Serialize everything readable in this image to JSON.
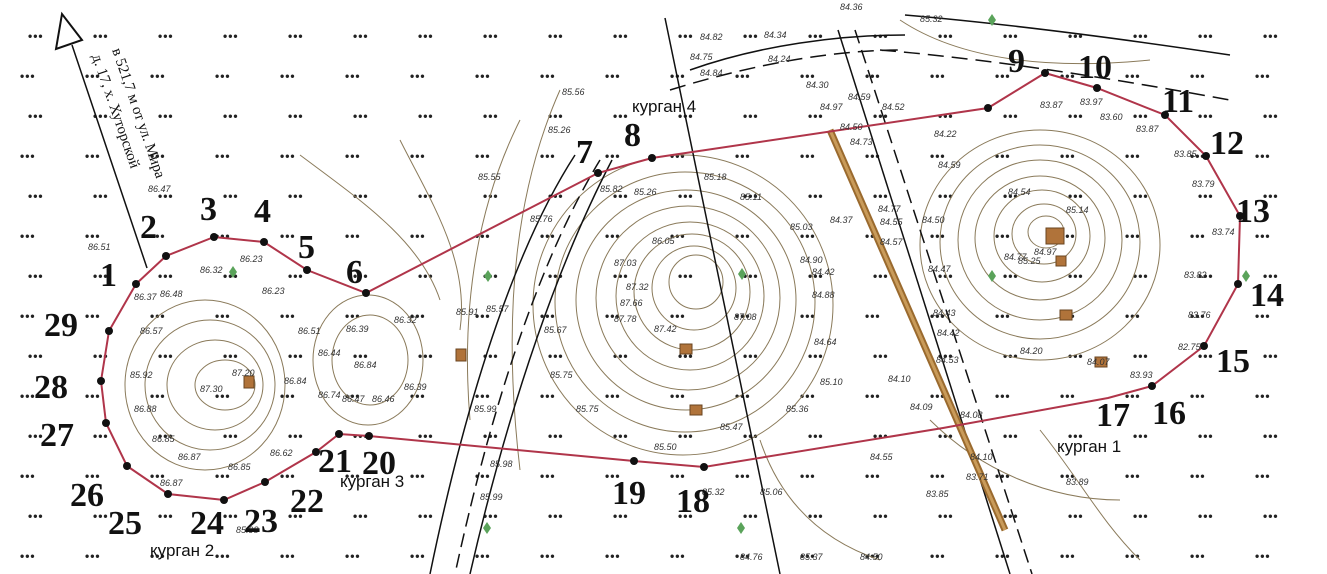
{
  "north_arrow": {
    "line1": "в 521,7 м от ул. Мира",
    "line2": "д. 17, х. Хуторской"
  },
  "kurgans": [
    {
      "id": "kurgan-1",
      "label": "курган 1"
    },
    {
      "id": "kurgan-2",
      "label": "курган 2"
    },
    {
      "id": "kurgan-3",
      "label": "курган 3"
    },
    {
      "id": "kurgan-4",
      "label": "курган 4"
    }
  ],
  "boundary_points": [
    "1",
    "2",
    "3",
    "4",
    "5",
    "6",
    "7",
    "8",
    "9",
    "10",
    "11",
    "12",
    "13",
    "14",
    "15",
    "16",
    "17",
    "18",
    "19",
    "20",
    "21",
    "22",
    "23",
    "24",
    "25",
    "26",
    "27",
    "28",
    "29"
  ],
  "elevations": [
    "86.51",
    "86.47",
    "86.32",
    "86.23",
    "86.48",
    "86.23",
    "86.57",
    "86.37",
    "86.51",
    "86.39",
    "86.32",
    "85.92",
    "87.20",
    "87.30",
    "86.88",
    "86.84",
    "86.44",
    "86.84",
    "86.85",
    "86.87",
    "86.87",
    "86.85",
    "86.62",
    "86.74",
    "86.47",
    "86.46",
    "86.39",
    "85.98",
    "85.91",
    "85.99",
    "85.57",
    "85.67",
    "85.75",
    "85.26",
    "85.56",
    "85.82",
    "85.76",
    "85.98",
    "85.75",
    "85.55",
    "86.05",
    "87.03",
    "87.32",
    "87.42",
    "87.66",
    "87.78",
    "87.08",
    "85.26",
    "85.18",
    "85.11",
    "85.03",
    "84.90",
    "84.88",
    "84.64",
    "84.42",
    "85.10",
    "85.36",
    "85.06",
    "85.32",
    "85.50",
    "85.47",
    "84.82",
    "84.34",
    "84.75",
    "84.84",
    "84.24",
    "84.30",
    "84.50",
    "84.52",
    "84.59",
    "84.97",
    "84.73",
    "84.37",
    "84.77",
    "84.55",
    "84.57",
    "84.47",
    "84.43",
    "84.42",
    "84.53",
    "84.10",
    "84.09",
    "84.08",
    "84.10",
    "84.55",
    "83.71",
    "83.85",
    "83.89",
    "83.97",
    "83.87",
    "84.22",
    "84.59",
    "84.54",
    "85.14",
    "84.77",
    "85.25",
    "84.97",
    "83.60",
    "83.87",
    "83.85",
    "83.79",
    "83.74",
    "83.82",
    "83.76",
    "82.75",
    "83.93",
    "84.07",
    "84.20",
    "84.50",
    "84.36",
    "85.99",
    "85.32",
    "84.76",
    "85.37",
    "84.50"
  ]
}
